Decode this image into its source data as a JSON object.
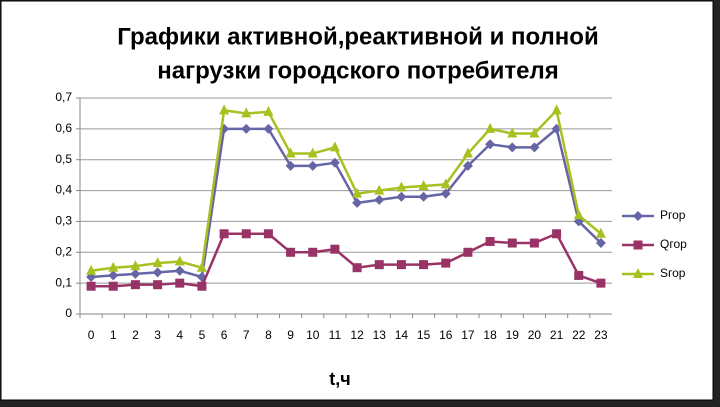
{
  "chart_data": {
    "type": "line",
    "title": [
      "Графики активной,реактивной и полной",
      "нагрузки городского потребителя"
    ],
    "x_label": "t,ч",
    "categories": [
      "0",
      "1",
      "2",
      "3",
      "4",
      "5",
      "6",
      "7",
      "8",
      "9",
      "10",
      "11",
      "12",
      "13",
      "14",
      "15",
      "16",
      "17",
      "18",
      "19",
      "20",
      "21",
      "22",
      "23"
    ],
    "series": [
      {
        "name": "Pгор",
        "color": "#6666a6",
        "marker": "diamond",
        "values": [
          0.12,
          0.125,
          0.13,
          0.135,
          0.14,
          0.12,
          0.6,
          0.6,
          0.6,
          0.48,
          0.48,
          0.49,
          0.36,
          0.37,
          0.38,
          0.38,
          0.39,
          0.48,
          0.55,
          0.54,
          0.54,
          0.6,
          0.3,
          0.23
        ]
      },
      {
        "name": "Qгор",
        "color": "#993366",
        "marker": "square",
        "values": [
          0.09,
          0.09,
          0.095,
          0.095,
          0.1,
          0.09,
          0.26,
          0.26,
          0.26,
          0.2,
          0.2,
          0.21,
          0.15,
          0.16,
          0.16,
          0.16,
          0.165,
          0.2,
          0.235,
          0.23,
          0.23,
          0.26,
          0.125,
          0.1
        ]
      },
      {
        "name": "Sгор",
        "color": "#a8c020",
        "marker": "triangle",
        "values": [
          0.14,
          0.15,
          0.155,
          0.165,
          0.17,
          0.15,
          0.66,
          0.65,
          0.655,
          0.52,
          0.52,
          0.54,
          0.39,
          0.4,
          0.41,
          0.415,
          0.42,
          0.52,
          0.6,
          0.585,
          0.585,
          0.66,
          0.32,
          0.26
        ]
      }
    ],
    "ylim": [
      0,
      0.7
    ],
    "yticks": [
      0,
      {
        "value": 0.1,
        "label": "0,1"
      },
      {
        "value": 0.2,
        "label": "0,2"
      },
      {
        "value": 0.3,
        "label": "0,3"
      },
      {
        "value": 0.4,
        "label": "0,4"
      },
      {
        "value": 0.5,
        "label": "0,5"
      },
      {
        "value": 0.6,
        "label": "0,6"
      },
      {
        "value": 0.7,
        "label": "0,7"
      }
    ],
    "grid": true,
    "legend": "right"
  }
}
